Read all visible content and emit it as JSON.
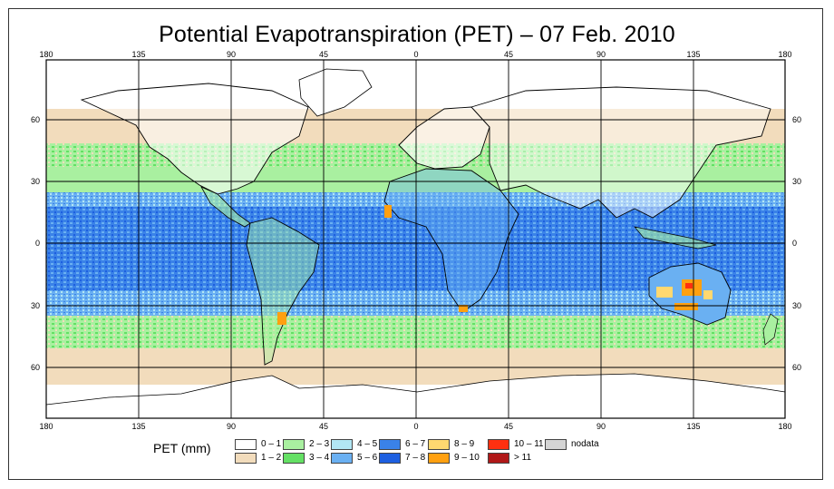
{
  "title": "Potential Evapotranspiration (PET) – 07 Feb. 2010",
  "map": {
    "lon_ticks_top": [
      "180",
      "135",
      "90",
      "45",
      "0",
      "45",
      "90",
      "135",
      "180"
    ],
    "lon_ticks_bottom": [
      "180",
      "135",
      "90",
      "45",
      "0",
      "45",
      "90",
      "135",
      "180"
    ],
    "lat_ticks": [
      "60",
      "30",
      "0",
      "30",
      "60"
    ]
  },
  "legend": {
    "title": "PET (mm)",
    "items": [
      {
        "label": "0 – 1",
        "color": "#ffffff"
      },
      {
        "label": "1 – 2",
        "color": "#f2dcbc"
      },
      {
        "label": "2 – 3",
        "color": "#a9f0a0"
      },
      {
        "label": "3 – 4",
        "color": "#64e064"
      },
      {
        "label": "4 – 5",
        "color": "#b2e6f4"
      },
      {
        "label": "5 – 6",
        "color": "#6ab0f2"
      },
      {
        "label": "6 – 7",
        "color": "#3a82e8"
      },
      {
        "label": "7 – 8",
        "color": "#1d5fe0"
      },
      {
        "label": "8 – 9",
        "color": "#ffd870"
      },
      {
        "label": "9 – 10",
        "color": "#ffa010"
      },
      {
        "label": "10 – 11",
        "color": "#ff3010"
      },
      {
        "label": "> 11",
        "color": "#b01818"
      },
      {
        "label": "nodata",
        "color": "#d4d4d4"
      }
    ]
  }
}
